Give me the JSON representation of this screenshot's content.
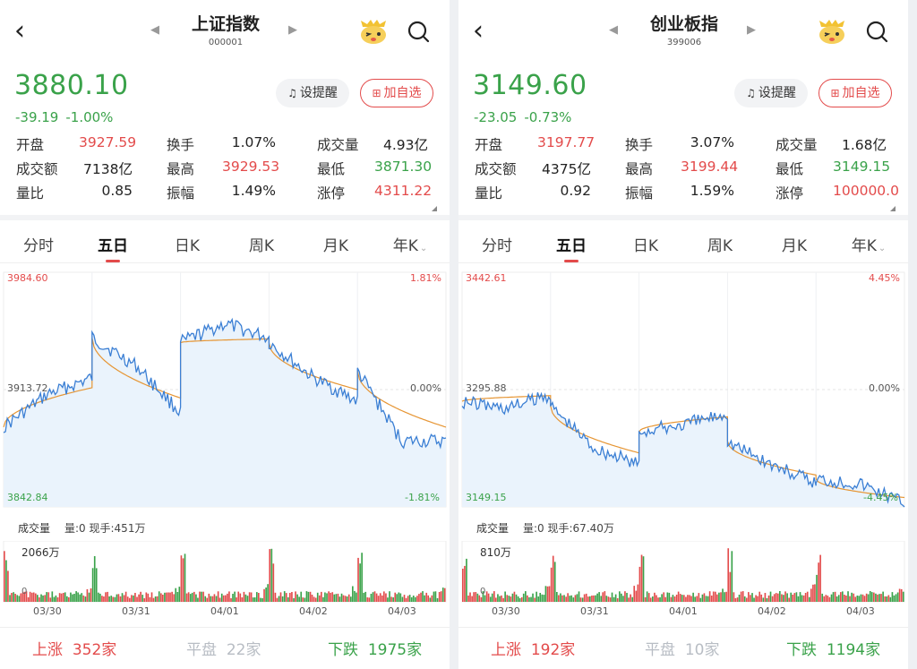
{
  "colors": {
    "up": "#e34b4b",
    "down": "#3aa24a",
    "line": "#3b7fd4",
    "avg": "#e69533",
    "flat": "#b8bdc4"
  },
  "nav": {
    "back_icon": "chevron-left-icon",
    "prev_icon": "caret-left-icon",
    "next_icon": "caret-right-icon",
    "mascot_icon": "mascot-icon",
    "search_icon": "search-icon"
  },
  "tabs": [
    "分时",
    "五日",
    "日K",
    "周K",
    "月K",
    "年K"
  ],
  "buttons": {
    "alert": "设提醒",
    "favorite": "加自选"
  },
  "panels": [
    {
      "title": "上证指数",
      "code": "000001",
      "price": "3880.10",
      "change": "-39.19",
      "change_pct": "-1.00%",
      "stats": [
        [
          {
            "label": "开盘",
            "value": "3927.59",
            "tone": "up"
          },
          {
            "label": "换手",
            "value": "1.07%",
            "tone": ""
          },
          {
            "label": "成交量",
            "value": "4.93亿",
            "tone": ""
          }
        ],
        [
          {
            "label": "成交额",
            "value": "7138亿",
            "tone": ""
          },
          {
            "label": "最高",
            "value": "3929.53",
            "tone": "up"
          },
          {
            "label": "最低",
            "value": "3871.30",
            "tone": "down"
          }
        ],
        [
          {
            "label": "量比",
            "value": "0.85",
            "tone": ""
          },
          {
            "label": "振幅",
            "value": "1.49%",
            "tone": ""
          },
          {
            "label": "涨停",
            "value": "4311.22",
            "tone": "up"
          }
        ]
      ],
      "chart": {
        "y_max": "3984.60",
        "y_mid": "3913.72",
        "y_min": "3842.84",
        "pct_max": "1.81%",
        "pct_mid": "0.00%",
        "pct_min": "-1.81%"
      },
      "volume": {
        "label": "成交量",
        "info": "量:0 现手:451万",
        "max": "2066万",
        "zero": "0"
      },
      "dates": [
        "03/30",
        "03/31",
        "04/01",
        "04/02",
        "04/03"
      ],
      "breadth": {
        "up_label": "上涨",
        "up_count": "352家",
        "flat_label": "平盘",
        "flat_count": "22家",
        "down_label": "下跌",
        "down_count": "1975家"
      }
    },
    {
      "title": "创业板指",
      "code": "399006",
      "price": "3149.60",
      "change": "-23.05",
      "change_pct": "-0.73%",
      "stats": [
        [
          {
            "label": "开盘",
            "value": "3197.77",
            "tone": "up"
          },
          {
            "label": "换手",
            "value": "3.07%",
            "tone": ""
          },
          {
            "label": "成交量",
            "value": "1.68亿",
            "tone": ""
          }
        ],
        [
          {
            "label": "成交额",
            "value": "4375亿",
            "tone": ""
          },
          {
            "label": "最高",
            "value": "3199.44",
            "tone": "up"
          },
          {
            "label": "最低",
            "value": "3149.15",
            "tone": "down"
          }
        ],
        [
          {
            "label": "量比",
            "value": "0.92",
            "tone": ""
          },
          {
            "label": "振幅",
            "value": "1.59%",
            "tone": ""
          },
          {
            "label": "涨停",
            "value": "100000.0",
            "tone": "up"
          }
        ]
      ],
      "chart": {
        "y_max": "3442.61",
        "y_mid": "3295.88",
        "y_min": "3149.15",
        "pct_max": "4.45%",
        "pct_mid": "0.00%",
        "pct_min": "-4.45%"
      },
      "volume": {
        "label": "成交量",
        "info": "量:0 现手:67.40万",
        "max": "810万",
        "zero": "0"
      },
      "dates": [
        "03/30",
        "03/31",
        "04/01",
        "04/02",
        "04/03"
      ],
      "breadth": {
        "up_label": "上涨",
        "up_count": "192家",
        "flat_label": "平盘",
        "flat_count": "10家",
        "down_label": "下跌",
        "down_count": "1194家"
      }
    }
  ]
}
